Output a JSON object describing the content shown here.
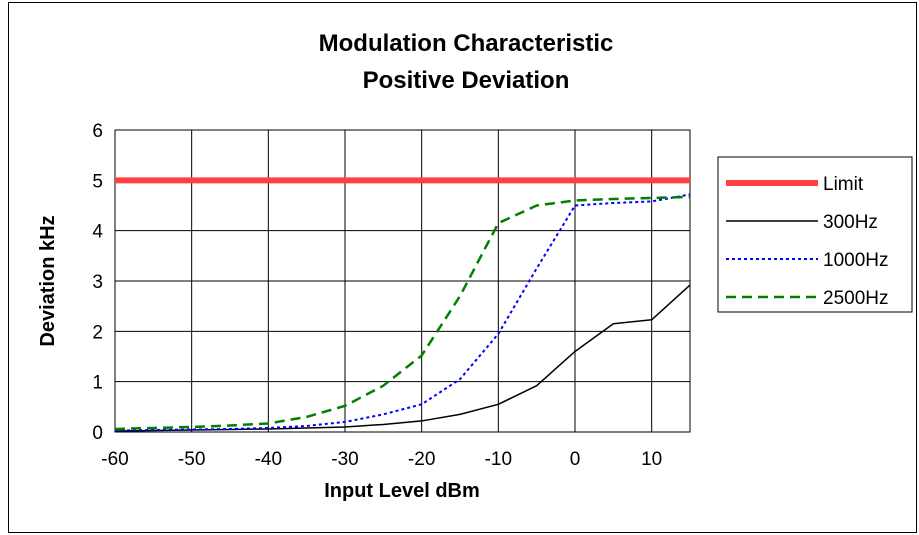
{
  "chart_data": {
    "type": "line",
    "title": [
      "Modulation Characteristic",
      "Positive Deviation"
    ],
    "xlabel": "Input Level dBm",
    "ylabel": "Deviation kHz",
    "xlim": [
      -60,
      15
    ],
    "ylim": [
      0,
      6
    ],
    "x_ticks": [
      -60,
      -50,
      -40,
      -30,
      -20,
      -10,
      0,
      10
    ],
    "y_ticks": [
      0,
      1,
      2,
      3,
      4,
      5,
      6
    ],
    "grid": true,
    "legend": "right",
    "series": [
      {
        "name": "Limit",
        "color": "#ff4040",
        "dash": "solid",
        "x": [
          -60,
          15
        ],
        "y": [
          5,
          5
        ]
      },
      {
        "name": "300Hz",
        "color": "#000000",
        "dash": "solid",
        "x": [
          -60,
          -55,
          -50,
          -45,
          -40,
          -35,
          -30,
          -25,
          -20,
          -15,
          -10,
          -5,
          0,
          5,
          10,
          15
        ],
        "y": [
          0.02,
          0.03,
          0.04,
          0.05,
          0.06,
          0.08,
          0.1,
          0.15,
          0.22,
          0.35,
          0.55,
          0.92,
          1.6,
          2.15,
          2.23,
          2.92
        ]
      },
      {
        "name": "1000Hz",
        "color": "#0000ff",
        "dash": "dotted",
        "x": [
          -60,
          -55,
          -50,
          -45,
          -40,
          -35,
          -30,
          -25,
          -20,
          -15,
          -10,
          -5,
          0,
          5,
          10,
          15
        ],
        "y": [
          0.03,
          0.04,
          0.05,
          0.06,
          0.08,
          0.12,
          0.2,
          0.35,
          0.55,
          1.05,
          1.95,
          3.25,
          4.5,
          4.55,
          4.58,
          4.72
        ]
      },
      {
        "name": "2500Hz",
        "color": "#008000",
        "dash": "dashed",
        "x": [
          -60,
          -55,
          -50,
          -45,
          -40,
          -35,
          -30,
          -25,
          -20,
          -15,
          -10,
          -5,
          0,
          5,
          10,
          15
        ],
        "y": [
          0.06,
          0.08,
          0.1,
          0.13,
          0.17,
          0.3,
          0.52,
          0.92,
          1.52,
          2.7,
          4.15,
          4.5,
          4.6,
          4.63,
          4.65,
          4.67
        ]
      }
    ]
  }
}
